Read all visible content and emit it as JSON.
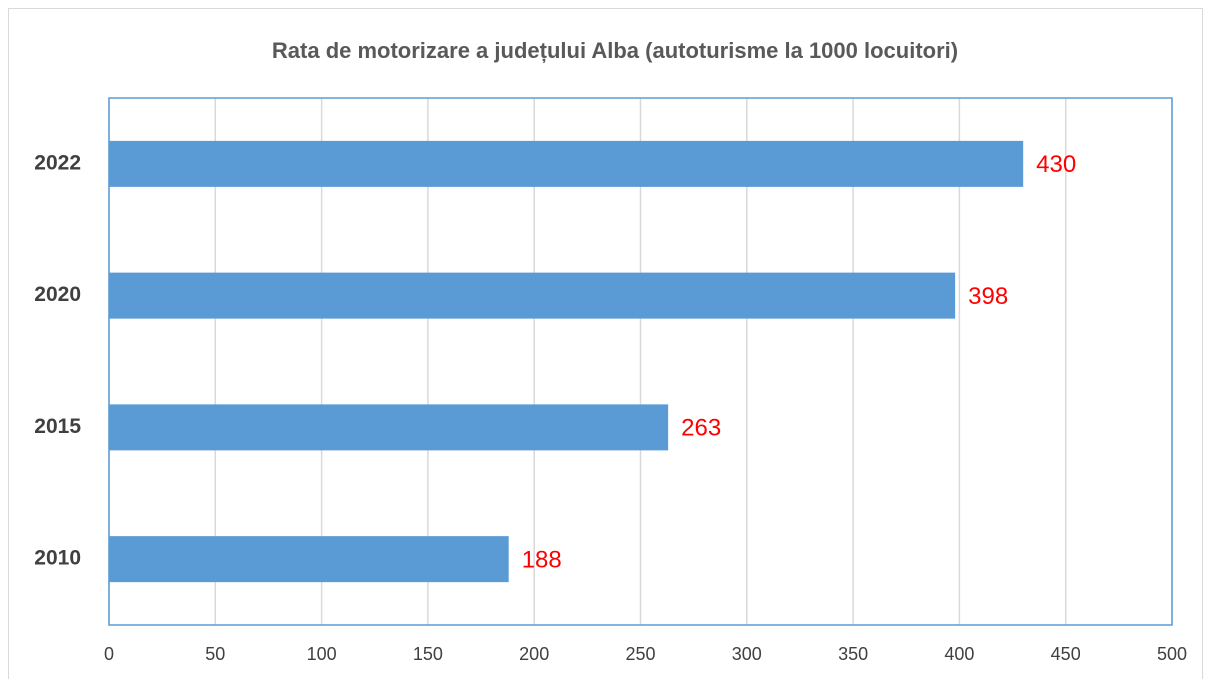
{
  "chart_data": {
    "type": "barh",
    "title": "Rata de motorizare a județului Alba (autoturisme la 1000 locuitori)",
    "categories": [
      "2010",
      "2015",
      "2020",
      "2022"
    ],
    "values": [
      188,
      263,
      398,
      430
    ],
    "color": "#5b9bd5",
    "label_color": "#ff0000",
    "xlim": [
      0,
      500
    ],
    "xticks": [
      0,
      50,
      100,
      150,
      200,
      250,
      300,
      350,
      400,
      450,
      500
    ],
    "grid": true
  }
}
